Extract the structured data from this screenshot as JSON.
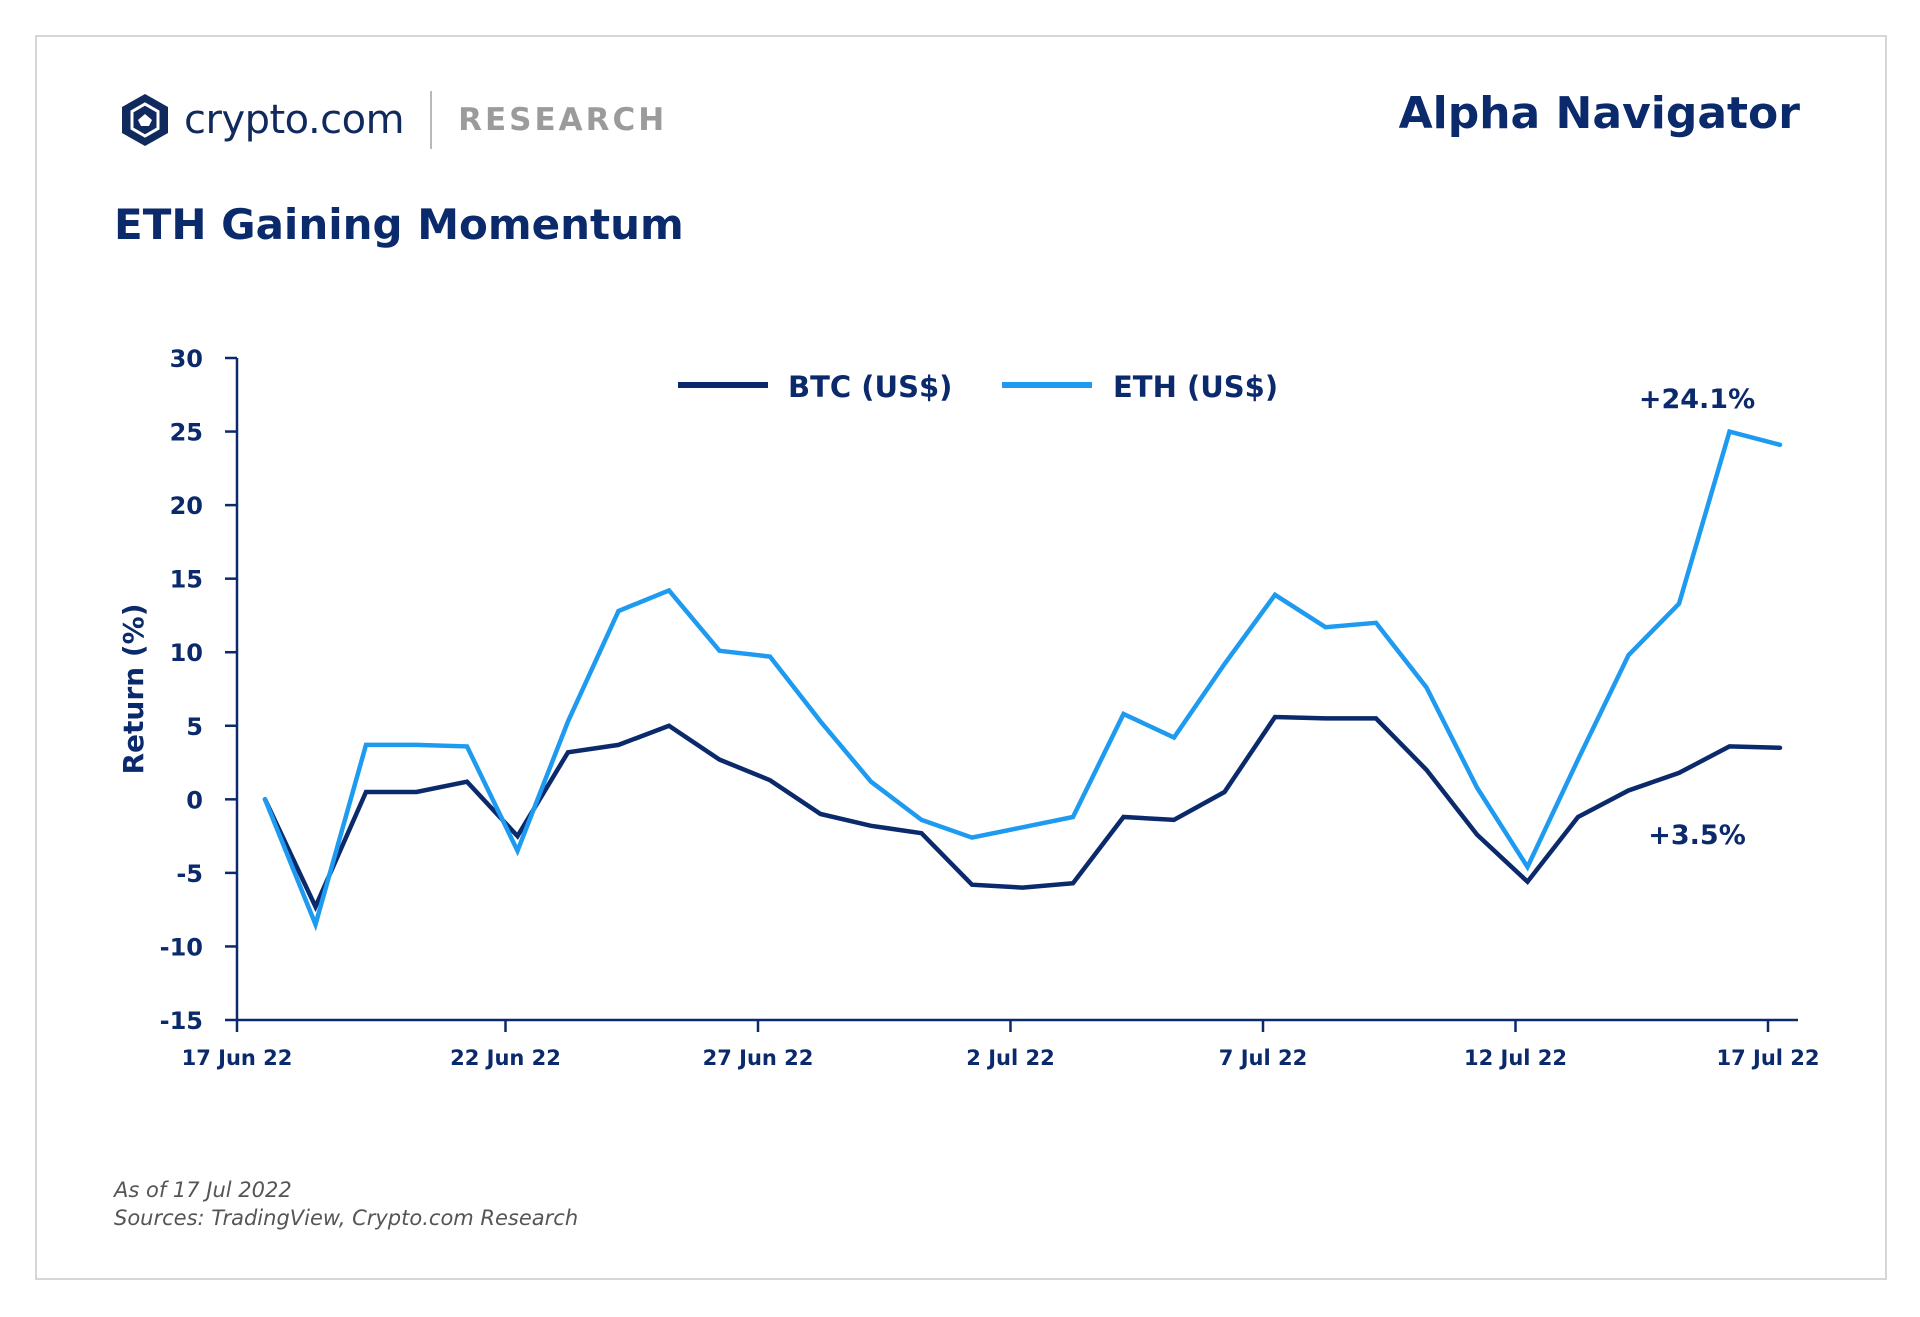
{
  "header": {
    "brand": "crypto.com",
    "section": "RESEARCH",
    "report": "Alpha Navigator"
  },
  "colors": {
    "navy": "#0b2a6c",
    "btc": "#0b2a6c",
    "eth": "#1e9bf0",
    "muted": "#9b9b9b"
  },
  "footer": {
    "as_of": "As of 17 Jul 2022",
    "sources": "Sources: TradingView, Crypto.com Research"
  },
  "chart_data": {
    "type": "line",
    "title": "ETH Gaining Momentum",
    "ylabel": "Return (%)",
    "xlabel": "",
    "ylim": [
      -15,
      30
    ],
    "yticks": [
      -15,
      -10,
      -5,
      0,
      5,
      10,
      15,
      20,
      25,
      30
    ],
    "x": [
      "17 Jun 22",
      "18 Jun 22",
      "19 Jun 22",
      "20 Jun 22",
      "21 Jun 22",
      "22 Jun 22",
      "23 Jun 22",
      "24 Jun 22",
      "25 Jun 22",
      "26 Jun 22",
      "27 Jun 22",
      "28 Jun 22",
      "29 Jun 22",
      "30 Jun 22",
      "1 Jul 22",
      "2 Jul 22",
      "3 Jul 22",
      "4 Jul 22",
      "5 Jul 22",
      "6 Jul 22",
      "7 Jul 22",
      "8 Jul 22",
      "9 Jul 22",
      "10 Jul 22",
      "11 Jul 22",
      "12 Jul 22",
      "13 Jul 22",
      "14 Jul 22",
      "15 Jul 22",
      "16 Jul 22",
      "17 Jul 22"
    ],
    "xtick_labels": [
      "17 Jun 22",
      "22 Jun 22",
      "27 Jun 22",
      "2 Jul 22",
      "7 Jul 22",
      "12 Jul 22",
      "17 Jul 22"
    ],
    "legend_position": "top-center",
    "grid": false,
    "series": [
      {
        "name": "BTC (US$)",
        "values": [
          0.0,
          -7.3,
          0.5,
          0.5,
          1.2,
          -2.5,
          3.2,
          3.7,
          5.0,
          2.7,
          1.3,
          -1.0,
          -1.8,
          -2.3,
          -5.8,
          -6.0,
          -5.7,
          -1.2,
          -1.4,
          0.5,
          5.6,
          5.5,
          5.5,
          2.0,
          -2.4,
          -5.6,
          -1.2,
          0.6,
          1.8,
          3.6,
          3.5
        ],
        "end_label": "+3.5%"
      },
      {
        "name": "ETH (US$)",
        "values": [
          0.0,
          -8.5,
          3.7,
          3.7,
          3.6,
          -3.5,
          5.3,
          12.8,
          14.2,
          10.1,
          9.7,
          5.3,
          1.2,
          -1.4,
          -2.6,
          -1.9,
          -1.2,
          5.8,
          4.2,
          9.2,
          13.9,
          11.7,
          12.0,
          7.6,
          0.8,
          -4.6,
          2.7,
          9.8,
          13.3,
          25.0,
          24.1
        ],
        "end_label": "+24.1%"
      }
    ]
  }
}
